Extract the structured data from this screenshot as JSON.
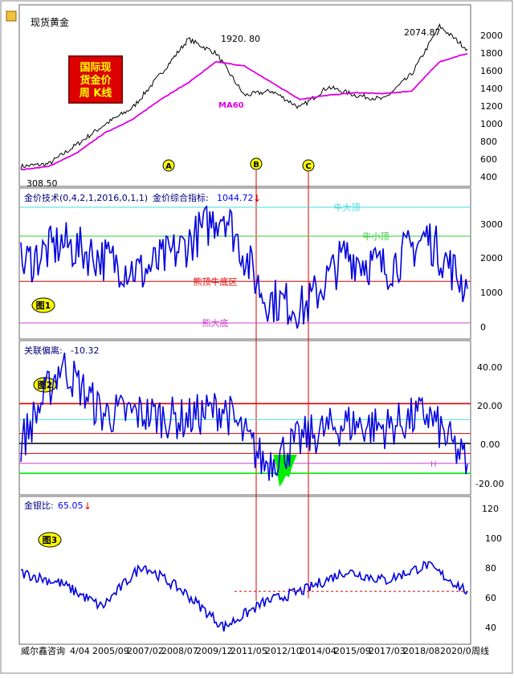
{
  "window_title": "现货黄金",
  "badge_lines": [
    "国际现",
    "货金价",
    "周 K线"
  ],
  "panel1": {
    "ma_label": "MA60",
    "high_label": "1920. 80",
    "high_right_label": "2074.87",
    "low_label": "308.50",
    "yticks": [
      "2000",
      "1800",
      "1600",
      "1400",
      "1200",
      "1000",
      "800",
      "600",
      "400"
    ],
    "markers": [
      "A",
      "B",
      "C"
    ]
  },
  "panel2": {
    "header_label": "金价技术(0,4,2,1,2016,0,1,1)",
    "header_index_label": "金价综合指标:",
    "header_value": "1044.72",
    "figure_label": "图1",
    "yticks": [
      "3000",
      "2000",
      "1000",
      "0"
    ],
    "line_labels": [
      "牛大顶",
      "牛小顶",
      "熊顶牛底区",
      "熊大底"
    ]
  },
  "panel3": {
    "header_label": "关联偏离:",
    "header_value": "-10.32",
    "figure_label": "图2",
    "yticks": [
      "40.00",
      "20.00",
      "0.00",
      "-20.00"
    ],
    "marker_label": "H"
  },
  "panel4": {
    "header_label": "金银比:",
    "header_value": "65.05",
    "figure_label": "图3",
    "yticks": [
      "120",
      "100",
      "80",
      "60",
      "40"
    ]
  },
  "x_axis": {
    "source_label": "威尔鑫咨询",
    "ticks": [
      "4/04",
      "2005/09",
      "2007/02",
      "2008/07",
      "2009/12",
      "2011/05",
      "2012/10",
      "2014/04",
      "2015/09",
      "2017/03",
      "2018/08",
      "2020/0"
    ],
    "end_label": "周线"
  },
  "colors": {
    "price_line": "#000000",
    "ma_line": "#e000e0",
    "tech_line": "#0000dd",
    "red_line": "#dd0000",
    "green_fill": "#00ee00",
    "cyan_line": "#44dddd",
    "green_line": "#33cc33",
    "magenta_line": "#cc44cc",
    "badge_bg": "#dd0000",
    "badge_text": "#ffff00",
    "marker_fill": "#ffff00"
  },
  "chart_data": [
    {
      "type": "line",
      "title": "现货黄金",
      "x": [
        "2004/04",
        "2005/09",
        "2007/02",
        "2008/07",
        "2009/12",
        "2011/05",
        "2011/09",
        "2012/10",
        "2013/06",
        "2014/04",
        "2015/09",
        "2016/07",
        "2017/03",
        "2018/08",
        "2019/09",
        "2020/08",
        "2020/12"
      ],
      "series": [
        {
          "name": "现货黄金",
          "values": [
            400,
            430,
            660,
            900,
            1100,
            1500,
            1920.8,
            1750,
            1250,
            1300,
            1100,
            1350,
            1250,
            1200,
            1500,
            2074.87,
            1800
          ]
        },
        {
          "name": "MA60",
          "values": [
            360,
            400,
            560,
            800,
            960,
            1200,
            1400,
            1650,
            1600,
            1400,
            1200,
            1250,
            1280,
            1270,
            1300,
            1650,
            1750
          ]
        }
      ],
      "ylim": [
        200,
        2100
      ]
    },
    {
      "type": "line",
      "title": "金价技术(0,4,2,1,2016,0,1,1)",
      "x": [
        "2004/04",
        "2005/09",
        "2007/02",
        "2008/07",
        "2009/12",
        "2011/05",
        "2012/10",
        "2014/04",
        "2015/09",
        "2017/03",
        "2018/08",
        "2020/0"
      ],
      "series": [
        {
          "name": "金价综合指标",
          "values": [
            1700,
            2300,
            1900,
            1500,
            2200,
            3200,
            800,
            500,
            2000,
            1600,
            2500,
            1044.72
          ]
        }
      ],
      "reference_lines": {
        "牛大顶": 3300,
        "牛小顶": 2500,
        "熊顶牛底区": 1250,
        "熊大底": 100
      },
      "ylim": [
        -300,
        3700
      ]
    },
    {
      "type": "line",
      "title": "关联偏离",
      "x": [
        "2004/04",
        "2005/09",
        "2007/02",
        "2008/07",
        "2009/12",
        "2011/05",
        "2012/10",
        "2014/04",
        "2015/09",
        "2017/03",
        "2018/08",
        "2020/0"
      ],
      "series": [
        {
          "name": "关联偏离",
          "values": [
            0,
            40,
            15,
            15,
            12,
            18,
            -10,
            3,
            10,
            8,
            15,
            -10.32
          ]
        }
      ],
      "reference_lines": [
        20,
        12,
        5,
        0,
        -5,
        -10,
        -15
      ],
      "ylim": [
        -25,
        50
      ]
    },
    {
      "type": "line",
      "title": "金银比",
      "x": [
        "2004/04",
        "2005/09",
        "2007/02",
        "2008/07",
        "2009/12",
        "2011/05",
        "2012/10",
        "2014/04",
        "2015/09",
        "2017/03",
        "2018/08",
        "2020/0"
      ],
      "series": [
        {
          "name": "金银比",
          "values": [
            77,
            70,
            55,
            82,
            65,
            42,
            58,
            66,
            78,
            72,
            82,
            65.05
          ]
        }
      ],
      "reference_lines": [
        65
      ],
      "ylim": [
        32,
        125
      ]
    }
  ]
}
